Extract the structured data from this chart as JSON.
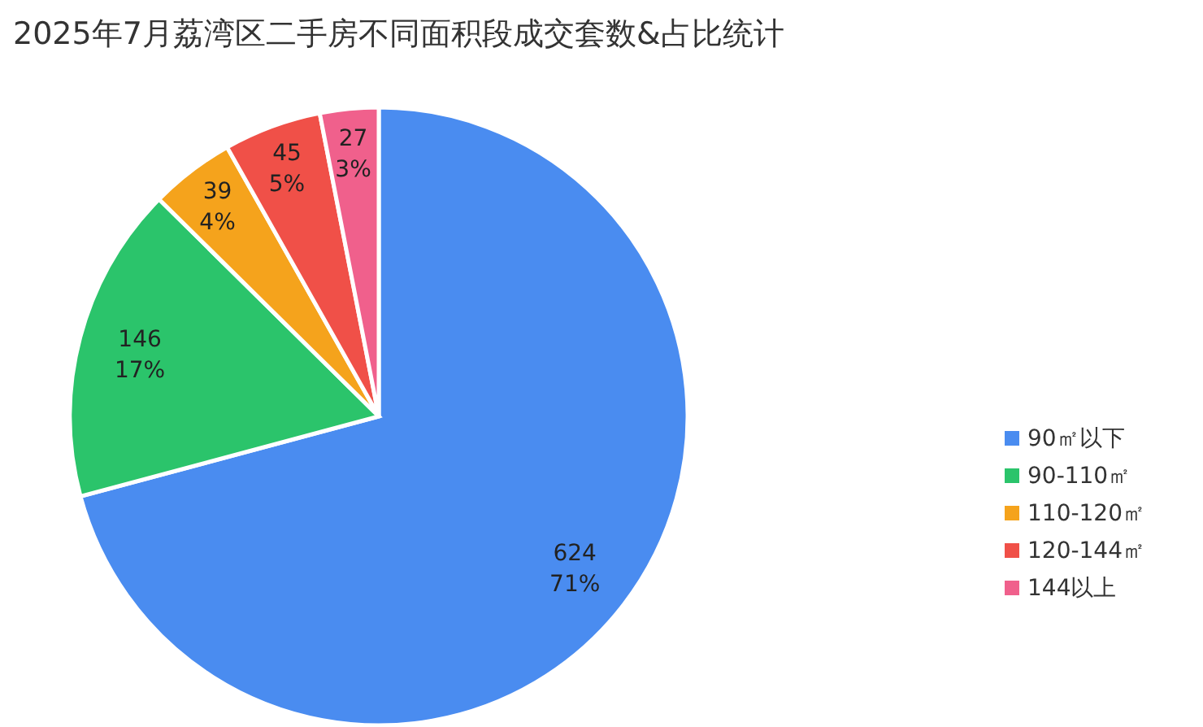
{
  "chart_data": {
    "type": "pie",
    "title": "2025年7月荔湾区二手房不同面积段成交套数&占比统计",
    "categories": [
      "90㎡以下",
      "90-110㎡",
      "110-120㎡",
      "120-144㎡",
      "144以上"
    ],
    "values": [
      624,
      146,
      39,
      45,
      27
    ],
    "colors": [
      "#4a8cf0",
      "#2bc46b",
      "#f5a31c",
      "#f05048",
      "#f0608c"
    ],
    "value_labels": [
      "624\n71%",
      "146\n17%",
      "39\n4%",
      "45\n5%",
      "27\n3%"
    ],
    "legend": "right"
  }
}
